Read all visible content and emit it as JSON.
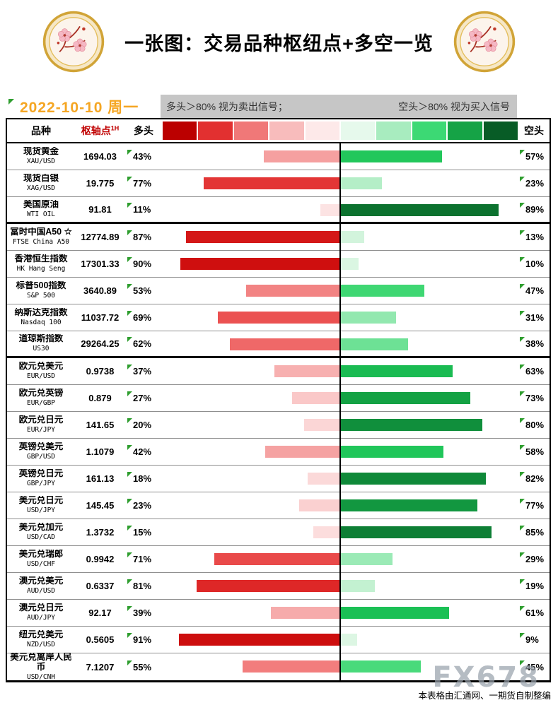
{
  "ui": {
    "header": {
      "title": "一张图：交易品种枢纽点+多空一览",
      "date": "2022-10-10 周一"
    },
    "notes": {
      "long": "多头＞80% 视为卖出信号；",
      "short": "空头＞80% 视为买入信号"
    },
    "columns": {
      "instrument": "品种",
      "pivot": "枢轴点",
      "pivot_sup": "1H",
      "long": "多头",
      "short": "空头"
    },
    "footer": {
      "source": "本表格由汇通网、一期货自制整编",
      "watermark": "FX678"
    }
  },
  "style": {
    "accent_orange": "#f5a623",
    "note_bg": "#c6c6c6",
    "triangle_green": "#2f9e2f",
    "pivot_header_red": "#c00000",
    "legend_colors": [
      "#bb0000",
      "#e23030",
      "#f07878",
      "#f8bcbc",
      "#fde9e9",
      "#e6f9ec",
      "#a8ecbf",
      "#3cd974",
      "#15a346",
      "#085c26"
    ],
    "red_stops": [
      [
        0,
        "#fdeeee"
      ],
      [
        10,
        "#fce4e4"
      ],
      [
        20,
        "#fbd6d6"
      ],
      [
        30,
        "#f9c2c2"
      ],
      [
        40,
        "#f6a8a8"
      ],
      [
        50,
        "#f38c8c"
      ],
      [
        60,
        "#f06e6e"
      ],
      [
        70,
        "#ea4e4e"
      ],
      [
        80,
        "#e02a2a"
      ],
      [
        90,
        "#cf0f0f"
      ],
      [
        100,
        "#b80000"
      ]
    ],
    "green_stops": [
      [
        0,
        "#eafaef"
      ],
      [
        10,
        "#daf6e2"
      ],
      [
        20,
        "#c0f0cf"
      ],
      [
        30,
        "#97e9b3"
      ],
      [
        40,
        "#62df8d"
      ],
      [
        50,
        "#30d468"
      ],
      [
        60,
        "#1cc256"
      ],
      [
        70,
        "#15aa48"
      ],
      [
        80,
        "#108f3c"
      ],
      [
        90,
        "#0b6f2e"
      ],
      [
        100,
        "#085c26"
      ]
    ]
  },
  "chart_data": {
    "type": "bar",
    "variant": "diverging-horizontal",
    "title": "一张图：交易品种枢纽点+多空一览",
    "series_names": [
      "多头",
      "空头"
    ],
    "value_unit": "%",
    "axis_range": [
      0,
      100
    ],
    "rows": [
      {
        "name": "现货黄金",
        "code": "XAU/USD",
        "pivot": "1694.03",
        "long": 43,
        "short": 57,
        "group_end": false
      },
      {
        "name": "现货白银",
        "code": "XAG/USD",
        "pivot": "19.775",
        "long": 77,
        "short": 23,
        "group_end": false
      },
      {
        "name": "美国原油",
        "code": "WTI OIL",
        "pivot": "91.81",
        "long": 11,
        "short": 89,
        "group_end": true
      },
      {
        "name": "富时中国A50 ☆",
        "code": "FTSE China A50",
        "pivot": "12774.89",
        "long": 87,
        "short": 13,
        "group_end": false
      },
      {
        "name": "香港恒生指数",
        "code": "HK Hang Seng",
        "pivot": "17301.33",
        "long": 90,
        "short": 10,
        "group_end": false
      },
      {
        "name": "标普500指数",
        "code": "S&P 500",
        "pivot": "3640.89",
        "long": 53,
        "short": 47,
        "group_end": false
      },
      {
        "name": "纳斯达克指数",
        "code": "Nasdaq 100",
        "pivot": "11037.72",
        "long": 69,
        "short": 31,
        "group_end": false
      },
      {
        "name": "道琼斯指数",
        "code": "US30",
        "pivot": "29264.25",
        "long": 62,
        "short": 38,
        "group_end": true
      },
      {
        "name": "欧元兑美元",
        "code": "EUR/USD",
        "pivot": "0.9738",
        "long": 37,
        "short": 63,
        "group_end": false
      },
      {
        "name": "欧元兑英镑",
        "code": "EUR/GBP",
        "pivot": "0.879",
        "long": 27,
        "short": 73,
        "group_end": false
      },
      {
        "name": "欧元兑日元",
        "code": "EUR/JPY",
        "pivot": "141.65",
        "long": 20,
        "short": 80,
        "group_end": false
      },
      {
        "name": "英镑兑美元",
        "code": "GBP/USD",
        "pivot": "1.1079",
        "long": 42,
        "short": 58,
        "group_end": false
      },
      {
        "name": "英镑兑日元",
        "code": "GBP/JPY",
        "pivot": "161.13",
        "long": 18,
        "short": 82,
        "group_end": false
      },
      {
        "name": "美元兑日元",
        "code": "USD/JPY",
        "pivot": "145.45",
        "long": 23,
        "short": 77,
        "group_end": false
      },
      {
        "name": "美元兑加元",
        "code": "USD/CAD",
        "pivot": "1.3732",
        "long": 15,
        "short": 85,
        "group_end": false
      },
      {
        "name": "美元兑瑞郎",
        "code": "USD/CHF",
        "pivot": "0.9942",
        "long": 71,
        "short": 29,
        "group_end": false
      },
      {
        "name": "澳元兑美元",
        "code": "AUD/USD",
        "pivot": "0.6337",
        "long": 81,
        "short": 19,
        "group_end": false
      },
      {
        "name": "澳元兑日元",
        "code": "AUD/JPY",
        "pivot": "92.17",
        "long": 39,
        "short": 61,
        "group_end": false
      },
      {
        "name": "纽元兑美元",
        "code": "NZD/USD",
        "pivot": "0.5605",
        "long": 91,
        "short": 9,
        "group_end": false
      },
      {
        "name": "美元兑离岸人民币",
        "code": "USD/CNH",
        "pivot": "7.1207",
        "long": 55,
        "short": 45,
        "group_end": false
      }
    ]
  }
}
